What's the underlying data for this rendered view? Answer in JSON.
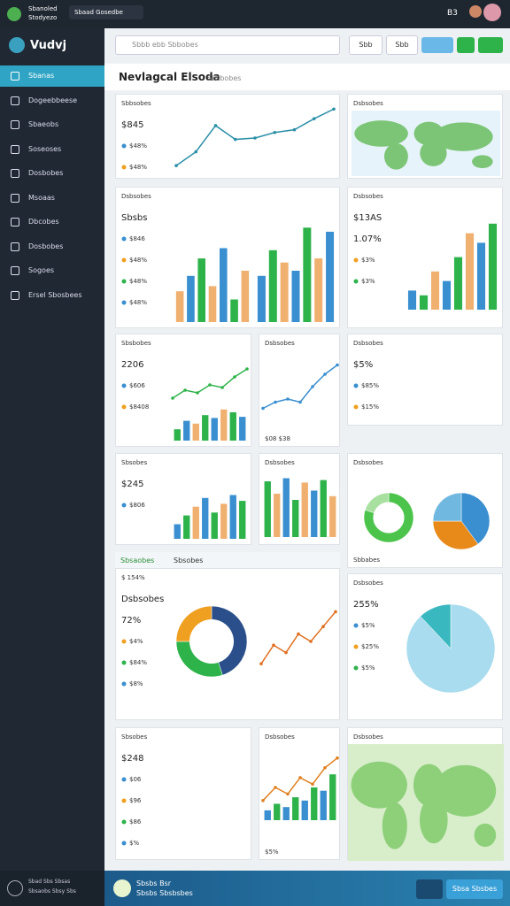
{
  "topbar": {
    "brand": "Sbanoled",
    "sub": "Stodyezo",
    "search": "Sbaad Gosedbe",
    "right": "B3"
  },
  "sidebar": {
    "logo": "Vudvj",
    "items": [
      "Sbanas",
      "Dogeebbeese",
      "Sbaeobs",
      "Soseoses",
      "Dosbobes",
      "Msoaas",
      "Dbcobes",
      "Dosbobes",
      "Sogoes",
      "Ersel Sbosbees"
    ],
    "footer": [
      "Sbad Sbs Sbsas",
      "Sbsaobs Sbsy Sbs"
    ]
  },
  "toolbar": {
    "search": "Sbbb ebb Sbbobes",
    "buttons": [
      "Sbb",
      "Sbb"
    ]
  },
  "header": {
    "title": "Nevlagcal Elsoda",
    "tab": "Sbsbobes"
  },
  "strip": [
    "Sbsaobes",
    "Sbsobes"
  ],
  "cards": [
    {
      "title": "Sbbsobes",
      "lines": [
        "$845",
        "$48%",
        "$48%"
      ],
      "charts": [
        {
          "type": "line",
          "values": [
            10,
            30,
            68,
            48,
            50,
            58,
            62,
            78,
            92
          ],
          "color": "#2a8fa8"
        }
      ]
    },
    {
      "title": "Dsbsobes",
      "charts": [
        {
          "type": "map",
          "color": "#7cc576"
        }
      ]
    },
    {
      "title": "Dsbsobes",
      "lines": [
        "Sbsbs",
        "$846",
        "$48%",
        "$48%",
        "$48%"
      ],
      "charts": [
        {
          "type": "bar",
          "values": [
            30,
            45,
            62,
            35,
            72,
            22,
            50
          ],
          "colors": [
            "#f0b070",
            "#3a8fd0",
            "#2db34a"
          ]
        },
        {
          "type": "bar",
          "values": [
            45,
            70,
            58,
            50,
            92,
            62,
            88
          ],
          "colors": [
            "#3a8fd0",
            "#2db34a",
            "#f0b070"
          ]
        }
      ]
    },
    {
      "title": "Dsbsobes",
      "lines": [
        "$13AS",
        "1.07%",
        "$3%",
        "$3%"
      ],
      "charts": [
        {
          "type": "bar",
          "values": [
            20,
            15,
            40,
            30,
            55,
            80,
            70,
            90
          ],
          "colors": [
            "#3a8fd0",
            "#2db34a",
            "#f0b070"
          ]
        }
      ]
    },
    {
      "title": "Sbsbobes",
      "lines": [
        "2206",
        "$606",
        "$8408"
      ],
      "charts": [
        {
          "type": "bar",
          "values": [
            20,
            35,
            30,
            45,
            40,
            55,
            50,
            42
          ],
          "colors": [
            "#2db34a",
            "#3a8fd0",
            "#f0b070"
          ]
        },
        {
          "type": "line",
          "values": [
            30,
            45,
            40,
            55,
            50,
            70,
            85
          ],
          "color": "#2db34a"
        }
      ]
    },
    {
      "title": "Dsbsobes",
      "charts": [
        {
          "type": "line",
          "values": [
            15,
            25,
            30,
            25,
            50,
            70,
            85
          ],
          "color": "#3a8fd0"
        }
      ],
      "foot": "$08 $38"
    },
    {
      "title": "Dsbsobes",
      "lines": [
        "$5%",
        "$85%",
        "$15%"
      ]
    },
    {
      "title": "Sbsobes",
      "lines": [
        "$245",
        "$806"
      ],
      "charts": [
        {
          "type": "bar",
          "values": [
            25,
            40,
            55,
            70,
            45,
            60,
            75,
            65
          ],
          "colors": [
            "#3a8fd0",
            "#2db34a",
            "#f0b070"
          ]
        }
      ]
    },
    {
      "title": "Dsbsobes",
      "charts": [
        {
          "type": "bar",
          "values": [
            90,
            70,
            95,
            60,
            88,
            75,
            92,
            66
          ],
          "colors": [
            "#2db34a",
            "#f0b070",
            "#3a8fd0"
          ]
        }
      ]
    },
    {
      "title": "Dsbsobes",
      "charts": [
        {
          "type": "donut",
          "values": [
            80,
            20
          ],
          "colors": [
            "#4cc44c",
            "#a8e0a0"
          ]
        },
        {
          "type": "pie",
          "values": [
            40,
            35,
            25
          ],
          "colors": [
            "#3a8fd0",
            "#e88a1a",
            "#70b8e0"
          ]
        }
      ],
      "foot": "Sbbabes"
    },
    {
      "title": "$ 154%",
      "lines": [
        "Dsbsobes",
        "72%",
        "$4%",
        "$84%",
        "$8%"
      ],
      "charts": [
        {
          "type": "donut",
          "values": [
            45,
            30,
            25
          ],
          "colors": [
            "#2a4f8a",
            "#2db34a",
            "#f0a020"
          ]
        },
        {
          "type": "line",
          "values": [
            20,
            45,
            35,
            60,
            50,
            70,
            90
          ],
          "color": "#e07020"
        }
      ]
    },
    {
      "title": "Dsbsobes",
      "lines": [
        "255%",
        "$5%",
        "$25%",
        "$5%"
      ],
      "charts": [
        {
          "type": "pie",
          "values": [
            88,
            12
          ],
          "colors": [
            "#a8dcee",
            "#3ab8c0"
          ]
        }
      ]
    },
    {
      "title": "Sbsobes",
      "lines": [
        "$248",
        "$06",
        "$96",
        "$86",
        "$%"
      ],
      "charts": []
    },
    {
      "title": "Dsbsobes",
      "charts": [
        {
          "type": "bar",
          "values": [
            15,
            25,
            20,
            35,
            30,
            50,
            45,
            70
          ],
          "colors": [
            "#3a8fd0",
            "#2db34a"
          ]
        },
        {
          "type": "line",
          "values": [
            30,
            50,
            40,
            65,
            55,
            80,
            95
          ],
          "color": "#e08020"
        }
      ],
      "foot": "$5%"
    },
    {
      "title": "Dsbsobes",
      "charts": [
        {
          "type": "map",
          "color": "#8ed07a"
        }
      ]
    }
  ],
  "bottombar": {
    "title": "Sbsbs Bsr",
    "sub": "Sbsbs Sbsbsbes",
    "button": "Sbsa Sbsbes"
  }
}
